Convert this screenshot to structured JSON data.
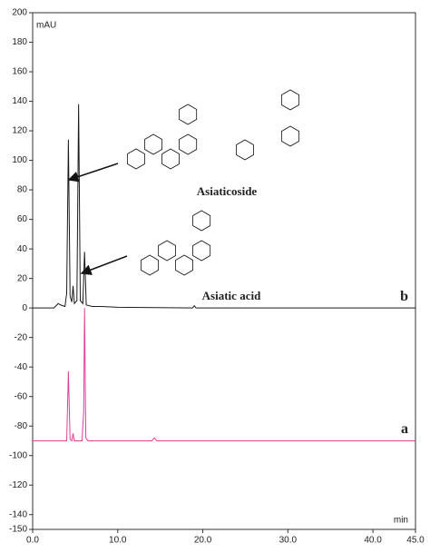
{
  "chart_data": {
    "type": "line",
    "y_label": "mAU",
    "x_label": "min",
    "xlim": [
      0,
      45
    ],
    "ylim": [
      -150,
      200
    ],
    "xticks": [
      {
        "value": 0,
        "label": "0.0"
      },
      {
        "value": 10,
        "label": "10.0"
      },
      {
        "value": 20,
        "label": "20.0"
      },
      {
        "value": 30,
        "label": "30.0"
      },
      {
        "value": 40,
        "label": "40.0"
      },
      {
        "value": 45,
        "label": "45.0"
      }
    ],
    "yticks": [
      200,
      180,
      160,
      140,
      120,
      100,
      80,
      60,
      40,
      20,
      0,
      -20,
      -40,
      -60,
      -80,
      -100,
      -120,
      -140,
      -150
    ],
    "annotations": [
      "Asiaticoside",
      "Asiatic acid"
    ],
    "series": [
      {
        "name": "b",
        "color": "#1a1a1a",
        "x": [
          0,
          2.5,
          3.0,
          3.3,
          3.8,
          4.0,
          4.2,
          4.4,
          4.6,
          4.75,
          4.9,
          5.2,
          5.4,
          5.6,
          5.9,
          6.1,
          6.3,
          7,
          8,
          10,
          18.8,
          19,
          19.2,
          45
        ],
        "values": [
          0,
          0,
          3,
          2,
          1,
          10,
          114,
          8,
          4,
          15,
          3,
          5,
          138,
          5,
          3,
          38,
          2,
          1,
          1,
          0.5,
          0,
          1.5,
          0,
          0
        ]
      },
      {
        "name": "a",
        "color": "#e0409a",
        "x": [
          0,
          4.0,
          4.2,
          4.4,
          4.6,
          4.75,
          4.9,
          5.8,
          6.0,
          6.1,
          6.25,
          6.5,
          14,
          14.3,
          14.6,
          45
        ],
        "values": [
          -90,
          -90,
          -43,
          -89,
          -90,
          -85,
          -90,
          -90,
          -70,
          0,
          -88,
          -90,
          -90,
          -88,
          -90,
          -90
        ]
      }
    ]
  }
}
